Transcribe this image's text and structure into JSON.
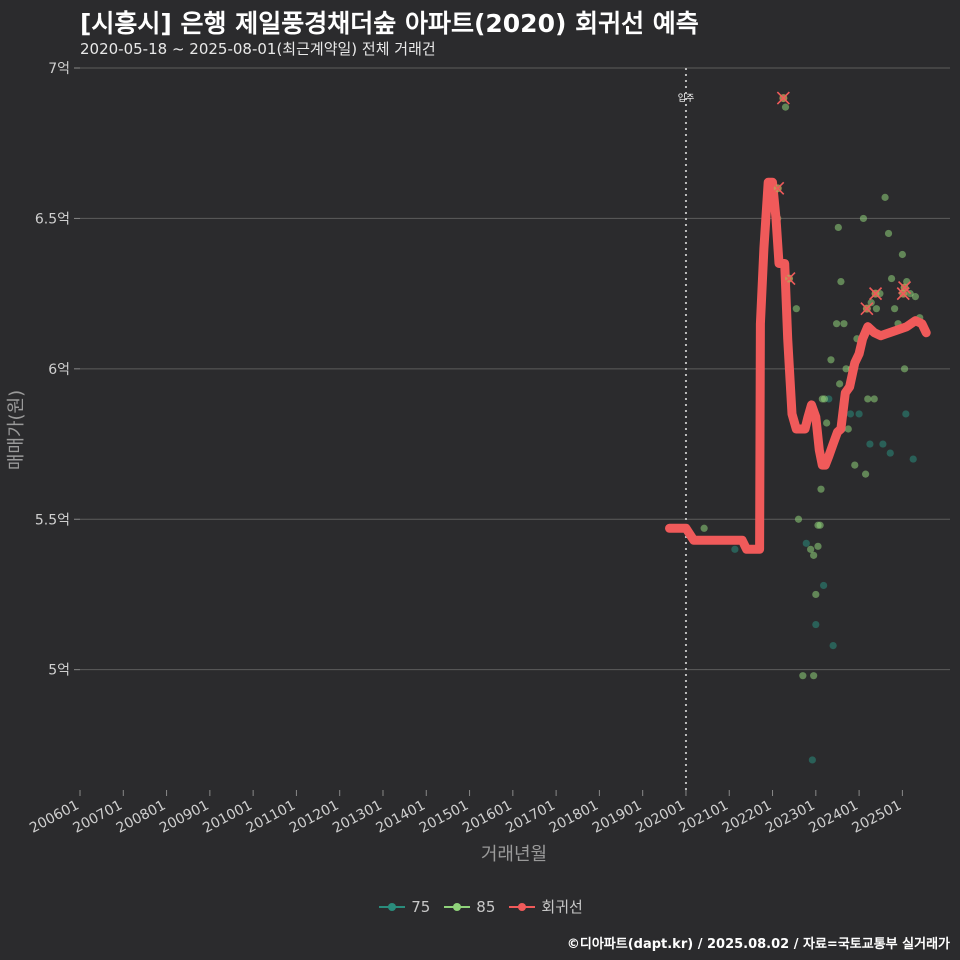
{
  "title": "[시흥시] 은행 제일풍경채더숲 아파트(2020) 회귀선 예측",
  "subtitle": "2020-05-18 ~ 2025-08-01(최근계약일) 전체 거래건",
  "caption": "©디아파트(dapt.kr) / 2025.08.02 / 자료=국토교통부 실거래가",
  "colors": {
    "background": "#2b2b2d",
    "grid": "#5c5c5c",
    "s75": "#2a8c7c",
    "s85": "#8fd27a",
    "reg": "#f05a5a",
    "vline": "#bbbbbb"
  },
  "legend": [
    {
      "key": "s75",
      "label": "75"
    },
    {
      "key": "s85",
      "label": "85"
    },
    {
      "key": "reg",
      "label": "회귀선"
    }
  ],
  "chart_data": {
    "type": "scatter",
    "title": "[시흥시] 은행 제일풍경채더숲 아파트(2020) 회귀선 예측",
    "xlabel": "거래년월",
    "ylabel": "매매가(원)",
    "xlim": [
      2006.0,
      2026.1
    ],
    "ylim": [
      4.6,
      7.0
    ],
    "y_ticks": [
      {
        "value": 5.0,
        "label": "5억"
      },
      {
        "value": 5.5,
        "label": "5.5억"
      },
      {
        "value": 6.0,
        "label": "6억"
      },
      {
        "value": 6.5,
        "label": "6.5억"
      },
      {
        "value": 7.0,
        "label": "7억"
      }
    ],
    "x_ticks": [
      {
        "value": 2006,
        "label": "200601"
      },
      {
        "value": 2007,
        "label": "200701"
      },
      {
        "value": 2008,
        "label": "200801"
      },
      {
        "value": 2009,
        "label": "200901"
      },
      {
        "value": 2010,
        "label": "201001"
      },
      {
        "value": 2011,
        "label": "201101"
      },
      {
        "value": 2012,
        "label": "201201"
      },
      {
        "value": 2013,
        "label": "201301"
      },
      {
        "value": 2014,
        "label": "201401"
      },
      {
        "value": 2015,
        "label": "201501"
      },
      {
        "value": 2016,
        "label": "201601"
      },
      {
        "value": 2017,
        "label": "201701"
      },
      {
        "value": 2018,
        "label": "201801"
      },
      {
        "value": 2019,
        "label": "201901"
      },
      {
        "value": 2020,
        "label": "202001"
      },
      {
        "value": 2021,
        "label": "202101"
      },
      {
        "value": 2022,
        "label": "202201"
      },
      {
        "value": 2023,
        "label": "202301"
      },
      {
        "value": 2024,
        "label": "202401"
      },
      {
        "value": 2025,
        "label": "202501"
      }
    ],
    "vline": {
      "x": 2020.0,
      "label": "입주"
    },
    "series": [
      {
        "name": "75",
        "color_key": "s75",
        "points": [
          [
            2021.13,
            5.4
          ],
          [
            2022.78,
            5.42
          ],
          [
            2023.0,
            5.15
          ],
          [
            2023.18,
            5.28
          ],
          [
            2023.4,
            5.08
          ],
          [
            2022.92,
            4.7
          ],
          [
            2023.3,
            5.9
          ],
          [
            2023.62,
            5.8
          ],
          [
            2024.25,
            5.75
          ],
          [
            2024.55,
            5.75
          ],
          [
            2024.72,
            5.72
          ],
          [
            2025.08,
            5.85
          ],
          [
            2025.25,
            5.7
          ],
          [
            2024.0,
            5.85
          ],
          [
            2023.8,
            5.85
          ]
        ]
      },
      {
        "name": "85",
        "color_key": "s85",
        "points": [
          [
            2020.42,
            5.47
          ],
          [
            2022.12,
            6.5
          ],
          [
            2022.35,
            6.3
          ],
          [
            2022.55,
            6.2
          ],
          [
            2022.6,
            5.5
          ],
          [
            2022.7,
            4.98
          ],
          [
            2022.88,
            5.4
          ],
          [
            2022.95,
            5.38
          ],
          [
            2023.0,
            5.25
          ],
          [
            2023.05,
            5.41
          ],
          [
            2023.1,
            5.48
          ],
          [
            2023.12,
            5.6
          ],
          [
            2023.2,
            5.9
          ],
          [
            2023.25,
            5.82
          ],
          [
            2023.35,
            6.03
          ],
          [
            2023.48,
            6.15
          ],
          [
            2023.52,
            6.47
          ],
          [
            2023.58,
            6.29
          ],
          [
            2023.65,
            6.15
          ],
          [
            2023.7,
            6.0
          ],
          [
            2023.75,
            5.8
          ],
          [
            2023.82,
            6.0
          ],
          [
            2023.9,
            5.68
          ],
          [
            2023.95,
            6.1
          ],
          [
            2024.1,
            6.5
          ],
          [
            2024.15,
            5.65
          ],
          [
            2024.2,
            5.9
          ],
          [
            2024.28,
            6.22
          ],
          [
            2024.35,
            5.9
          ],
          [
            2024.4,
            6.2
          ],
          [
            2024.48,
            6.25
          ],
          [
            2024.6,
            6.57
          ],
          [
            2024.68,
            6.45
          ],
          [
            2024.75,
            6.3
          ],
          [
            2024.82,
            6.2
          ],
          [
            2024.9,
            6.15
          ],
          [
            2025.0,
            6.38
          ],
          [
            2025.05,
            6.0
          ],
          [
            2025.1,
            6.29
          ],
          [
            2025.18,
            6.25
          ],
          [
            2025.3,
            6.24
          ],
          [
            2025.4,
            6.17
          ],
          [
            2025.45,
            6.15
          ],
          [
            2022.95,
            4.98
          ],
          [
            2023.05,
            5.48
          ],
          [
            2022.3,
            6.87
          ],
          [
            2023.15,
            5.9
          ],
          [
            2023.55,
            5.95
          ]
        ]
      },
      {
        "name": "X",
        "color_key": "reg",
        "marker": "x",
        "points": [
          [
            2022.25,
            6.9
          ],
          [
            2022.12,
            6.6
          ],
          [
            2022.38,
            6.3
          ],
          [
            2024.38,
            6.25
          ],
          [
            2024.18,
            6.2
          ],
          [
            2025.05,
            6.27
          ],
          [
            2025.02,
            6.25
          ]
        ]
      },
      {
        "name": "회귀선",
        "color_key": "reg",
        "type": "line",
        "points": [
          [
            2019.62,
            5.47
          ],
          [
            2020.0,
            5.47
          ],
          [
            2020.18,
            5.43
          ],
          [
            2020.6,
            5.43
          ],
          [
            2021.0,
            5.43
          ],
          [
            2021.3,
            5.43
          ],
          [
            2021.4,
            5.4
          ],
          [
            2021.7,
            5.4
          ],
          [
            2021.72,
            6.15
          ],
          [
            2021.8,
            6.4
          ],
          [
            2021.9,
            6.62
          ],
          [
            2022.0,
            6.62
          ],
          [
            2022.08,
            6.5
          ],
          [
            2022.15,
            6.35
          ],
          [
            2022.28,
            6.35
          ],
          [
            2022.35,
            6.1
          ],
          [
            2022.45,
            5.85
          ],
          [
            2022.55,
            5.8
          ],
          [
            2022.65,
            5.8
          ],
          [
            2022.75,
            5.8
          ],
          [
            2022.82,
            5.84
          ],
          [
            2022.9,
            5.88
          ],
          [
            2023.0,
            5.84
          ],
          [
            2023.08,
            5.73
          ],
          [
            2023.15,
            5.68
          ],
          [
            2023.22,
            5.68
          ],
          [
            2023.3,
            5.71
          ],
          [
            2023.4,
            5.75
          ],
          [
            2023.5,
            5.79
          ],
          [
            2023.58,
            5.8
          ],
          [
            2023.68,
            5.92
          ],
          [
            2023.78,
            5.94
          ],
          [
            2023.9,
            6.02
          ],
          [
            2024.0,
            6.05
          ],
          [
            2024.08,
            6.1
          ],
          [
            2024.2,
            6.14
          ],
          [
            2024.35,
            6.12
          ],
          [
            2024.5,
            6.11
          ],
          [
            2024.7,
            6.12
          ],
          [
            2024.9,
            6.13
          ],
          [
            2025.1,
            6.14
          ],
          [
            2025.3,
            6.16
          ],
          [
            2025.45,
            6.15
          ],
          [
            2025.55,
            6.12
          ]
        ]
      }
    ]
  }
}
